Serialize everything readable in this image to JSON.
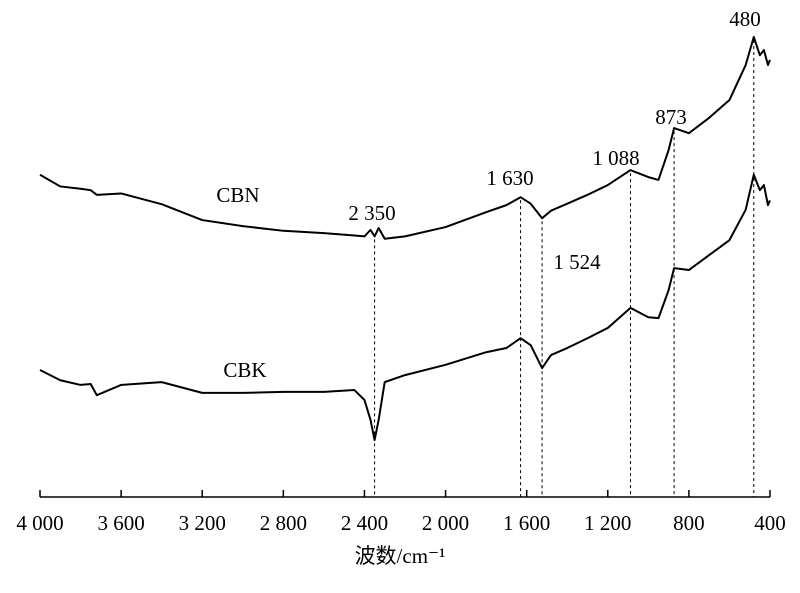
{
  "chart_data": {
    "type": "line",
    "x_label": "波数/cm⁻¹",
    "x_reversed": true,
    "xlim": [
      4000,
      400
    ],
    "xticks": [
      {
        "value": 4000,
        "label": "4 000"
      },
      {
        "value": 3600,
        "label": "3 600"
      },
      {
        "value": 3200,
        "label": "3 200"
      },
      {
        "value": 2800,
        "label": "2 800"
      },
      {
        "value": 2400,
        "label": "2 400"
      },
      {
        "value": 2000,
        "label": "2 000"
      },
      {
        "value": 1600,
        "label": "1 600"
      },
      {
        "value": 1200,
        "label": "1 200"
      },
      800,
      400
    ],
    "ylim": [
      0,
      100
    ],
    "x": [
      4000,
      3900,
      3800,
      3750,
      3720,
      3600,
      3400,
      3200,
      3000,
      2800,
      2600,
      2450,
      2400,
      2370,
      2350,
      2330,
      2300,
      2200,
      2000,
      1800,
      1700,
      1630,
      1580,
      1524,
      1480,
      1400,
      1300,
      1200,
      1088,
      1000,
      950,
      900,
      873,
      800,
      700,
      600,
      520,
      480,
      450,
      430,
      410,
      400
    ],
    "series": [
      {
        "name": "CBN",
        "color": "#000000",
        "values": [
          69,
          66.5,
          66,
          65.7,
          64.7,
          65,
          62.7,
          59.3,
          58,
          57,
          56.5,
          56,
          55.8,
          57.2,
          55.8,
          57.6,
          55.3,
          55.8,
          57.8,
          61,
          62.5,
          64.2,
          62.8,
          59.7,
          61.3,
          62.8,
          64.7,
          66.8,
          70,
          68.5,
          67.9,
          74.3,
          79,
          77.9,
          81.2,
          85,
          92.5,
          98.5,
          94.6,
          95.7,
          92.5,
          93.6
        ]
      },
      {
        "name": "CBK",
        "color": "#000000",
        "values": [
          27.2,
          25,
          24,
          24.2,
          21.8,
          24,
          24.6,
          22.3,
          22.3,
          22.5,
          22.5,
          22.9,
          20.8,
          16.5,
          12.2,
          16.5,
          24.6,
          26.1,
          28.3,
          31,
          31.9,
          34,
          32.5,
          27.6,
          30.4,
          31.9,
          34,
          36.2,
          40.5,
          38.5,
          38.3,
          44.3,
          49,
          48.6,
          51.8,
          55,
          61.5,
          69,
          65.7,
          66.8,
          62.5,
          63.5
        ]
      }
    ],
    "annotations": [
      {
        "x": 2350,
        "label": "2 350"
      },
      {
        "x": 1630,
        "label": "1 630"
      },
      {
        "x": 1524,
        "label": "1 524"
      },
      {
        "x": 1088,
        "label": "1 088"
      },
      {
        "x": 873,
        "label": "873"
      },
      {
        "x": 480,
        "label": "480"
      }
    ]
  }
}
